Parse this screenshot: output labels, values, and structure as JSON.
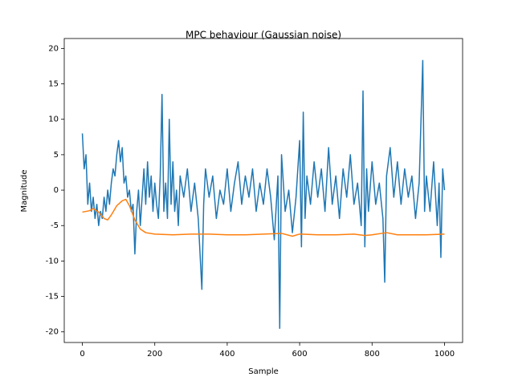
{
  "chart_data": {
    "type": "line",
    "title": "MPC behaviour (Gaussian noise)",
    "x_label": "Sample",
    "y_label": "Magnitude",
    "xlim": [
      -50,
      1050
    ],
    "ylim": [
      -21.5,
      21.4
    ],
    "xticks": [
      0,
      200,
      400,
      600,
      800,
      1000
    ],
    "yticks": [
      -20,
      -15,
      -10,
      -5,
      0,
      5,
      10,
      15,
      20
    ],
    "grid": false,
    "series": [
      {
        "color": "#1f77b4",
        "x": [
          0,
          5,
          10,
          15,
          20,
          25,
          30,
          35,
          40,
          45,
          50,
          55,
          60,
          65,
          70,
          75,
          80,
          85,
          90,
          95,
          100,
          105,
          110,
          115,
          120,
          125,
          130,
          135,
          140,
          145,
          150,
          155,
          160,
          165,
          170,
          175,
          180,
          185,
          190,
          195,
          200,
          205,
          210,
          215,
          220,
          225,
          230,
          235,
          240,
          245,
          250,
          255,
          260,
          265,
          270,
          280,
          290,
          300,
          310,
          320,
          330,
          335,
          340,
          350,
          360,
          370,
          380,
          390,
          400,
          410,
          420,
          430,
          440,
          450,
          460,
          470,
          480,
          490,
          500,
          510,
          520,
          530,
          540,
          545,
          550,
          560,
          570,
          580,
          590,
          600,
          605,
          610,
          615,
          620,
          630,
          640,
          650,
          660,
          670,
          680,
          690,
          700,
          710,
          720,
          730,
          740,
          750,
          760,
          770,
          775,
          780,
          785,
          790,
          800,
          810,
          820,
          830,
          835,
          840,
          850,
          860,
          870,
          880,
          890,
          900,
          910,
          920,
          930,
          940,
          945,
          950,
          960,
          970,
          980,
          985,
          990,
          995,
          1000
        ],
        "values": [
          8,
          3,
          5,
          -2,
          1,
          -3,
          -1,
          -4,
          -2,
          -5,
          -3,
          -4,
          -1,
          -3,
          0,
          -2,
          1,
          3,
          2,
          5,
          7,
          4,
          6,
          1,
          2,
          -1,
          0,
          -3,
          -2,
          -9,
          -3,
          0,
          -5,
          -1,
          3,
          -2,
          4,
          -1,
          2,
          -3,
          1,
          -2,
          -4,
          2,
          13.5,
          -3,
          1,
          -4,
          10,
          -2,
          4,
          -3,
          0,
          -5,
          2,
          -1,
          3,
          -3,
          1,
          -4,
          -14,
          -2,
          3,
          -1,
          2,
          -4,
          0,
          -2,
          3,
          -3,
          1,
          4,
          -2,
          2,
          -1,
          3,
          -3,
          1,
          -2,
          3,
          -1,
          -7,
          2,
          -19.5,
          5,
          -3,
          0,
          -6,
          -1,
          7,
          -8,
          11,
          -4,
          2,
          -2,
          4,
          -1,
          3,
          -3,
          6,
          -2,
          2,
          -4,
          3,
          -1,
          5,
          -2,
          1,
          -5,
          14,
          -8,
          3,
          -3,
          4,
          -2,
          1,
          -4,
          -13,
          2,
          6,
          -1,
          4,
          -2,
          3,
          -1,
          2,
          -4,
          1,
          18.3,
          -3,
          2,
          -3,
          4,
          -5,
          1,
          -9.5,
          3,
          0
        ]
      },
      {
        "color": "#ff7f0e",
        "x": [
          0,
          20,
          30,
          45,
          60,
          70,
          80,
          95,
          110,
          120,
          130,
          145,
          160,
          175,
          200,
          250,
          300,
          350,
          400,
          450,
          500,
          550,
          580,
          600,
          650,
          700,
          750,
          780,
          800,
          840,
          870,
          900,
          950,
          1000
        ],
        "values": [
          -3.1,
          -2.9,
          -2.6,
          -3.1,
          -4,
          -4.2,
          -3.5,
          -2.2,
          -1.5,
          -1.3,
          -2.2,
          -4.2,
          -5.5,
          -6,
          -6.2,
          -6.3,
          -6.2,
          -6.2,
          -6.3,
          -6.3,
          -6.2,
          -6.1,
          -6.5,
          -6.2,
          -6.3,
          -6.3,
          -6.2,
          -6.4,
          -6.3,
          -6,
          -6.3,
          -6.3,
          -6.3,
          -6.2
        ]
      }
    ]
  }
}
